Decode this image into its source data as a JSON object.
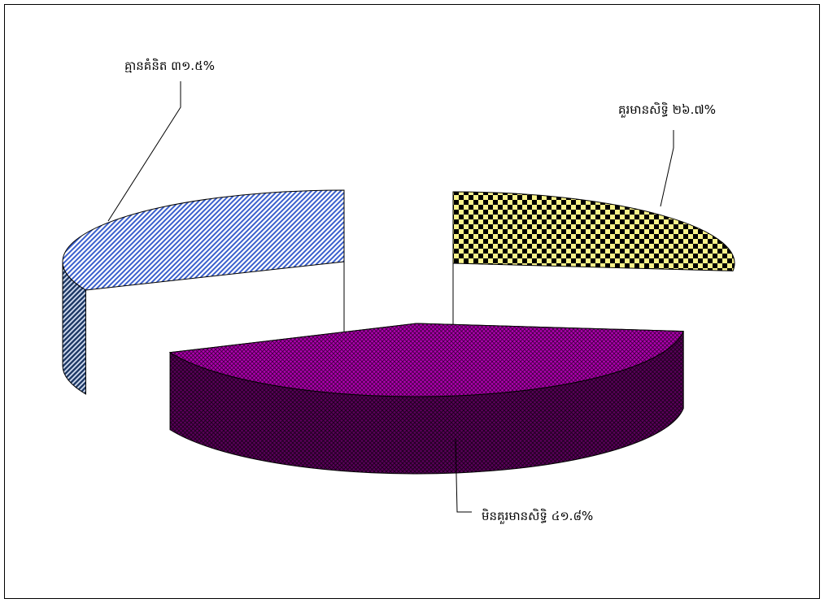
{
  "chart_data": {
    "type": "pie",
    "three_d": true,
    "exploded": true,
    "legend": "none",
    "slices": [
      {
        "label": "គ្មានគំនិត",
        "value": 31.5,
        "display": "គ្មានគំនិត ៣១.៥%",
        "color": "#3a5fcd",
        "pattern": "diagonal-stripes"
      },
      {
        "label": "គួរមានសិទ្ធិ",
        "value": 26.7,
        "display": "គួរមានសិទ្ធិ ២៦.៧%",
        "color": "#f4f07a",
        "pattern": "checkerboard"
      },
      {
        "label": "មិនគួរមានសិទ្ធិ",
        "value": 41.8,
        "display": "មិនគួរមានសិទ្ធិ ៤១.៨%",
        "color": "#8b008b",
        "pattern": "crosshatch"
      }
    ]
  }
}
